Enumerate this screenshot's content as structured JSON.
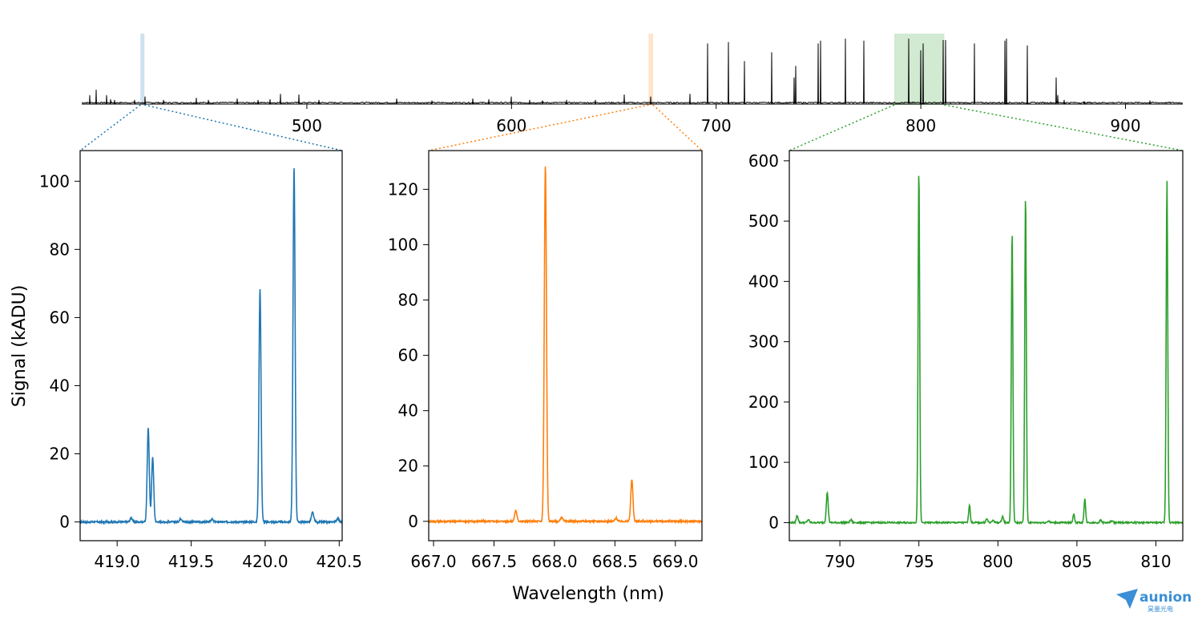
{
  "chart_data": [
    {
      "type": "line",
      "panel": "overview",
      "xlabel": "",
      "ylabel": "",
      "xlim": [
        390,
        928
      ],
      "xticks": [
        500,
        600,
        700,
        800,
        900
      ],
      "highlight_regions": [
        {
          "range": [
            418.8,
            420.5
          ],
          "color": "#1f77b4"
        },
        {
          "range": [
            667.0,
            669.2
          ],
          "color": "#ff7f0e"
        },
        {
          "range": [
            787.0,
            811.5
          ],
          "color": "#2ca02c"
        }
      ],
      "peaks": [
        [
          394,
          0.12
        ],
        [
          397,
          0.2
        ],
        [
          402,
          0.12
        ],
        [
          404,
          0.06
        ],
        [
          406,
          0.05
        ],
        [
          416,
          0.05
        ],
        [
          421,
          0.1
        ],
        [
          430,
          0.05
        ],
        [
          446,
          0.08
        ],
        [
          452,
          0.05
        ],
        [
          466,
          0.07
        ],
        [
          476,
          0.05
        ],
        [
          482,
          0.06
        ],
        [
          487,
          0.14
        ],
        [
          496,
          0.13
        ],
        [
          506,
          0.05
        ],
        [
          544,
          0.07
        ],
        [
          561,
          0.04
        ],
        [
          581,
          0.07
        ],
        [
          589,
          0.06
        ],
        [
          600,
          0.1
        ],
        [
          609,
          0.05
        ],
        [
          615,
          0.04
        ],
        [
          627,
          0.05
        ],
        [
          641,
          0.05
        ],
        [
          655,
          0.13
        ],
        [
          668,
          0.1
        ],
        [
          687,
          0.14
        ],
        [
          696,
          0.88
        ],
        [
          706,
          0.9
        ],
        [
          714,
          0.62
        ],
        [
          727,
          0.75
        ],
        [
          738,
          0.38
        ],
        [
          739,
          0.55
        ],
        [
          750,
          0.88
        ],
        [
          751,
          0.92
        ],
        [
          763,
          0.95
        ],
        [
          772,
          0.92
        ],
        [
          794,
          0.95
        ],
        [
          800,
          0.78
        ],
        [
          801,
          0.88
        ],
        [
          811,
          0.93
        ],
        [
          812,
          0.93
        ],
        [
          826,
          0.88
        ],
        [
          841,
          0.92
        ],
        [
          842,
          0.95
        ],
        [
          852,
          0.85
        ],
        [
          866,
          0.38
        ],
        [
          867,
          0.12
        ],
        [
          870,
          0.05
        ],
        [
          880,
          0.03
        ],
        [
          912,
          0.04
        ]
      ]
    },
    {
      "type": "line",
      "panel": "zoom-1",
      "color": "#1f77b4",
      "xlim": [
        418.75,
        420.52
      ],
      "ylim": [
        -5.5,
        109
      ],
      "xticks": [
        419.0,
        419.5,
        420.0,
        420.5
      ],
      "yticks": [
        0,
        20,
        40,
        60,
        80,
        100
      ],
      "peaks": [
        [
          419.095,
          1.2,
          0.008
        ],
        [
          419.21,
          27.5,
          0.007
        ],
        [
          419.24,
          19.0,
          0.007
        ],
        [
          419.43,
          1.0,
          0.008
        ],
        [
          419.64,
          0.8,
          0.008
        ],
        [
          419.965,
          68.5,
          0.007
        ],
        [
          420.195,
          104.0,
          0.007
        ],
        [
          420.32,
          2.8,
          0.008
        ],
        [
          420.49,
          1.0,
          0.008
        ]
      ]
    },
    {
      "type": "line",
      "panel": "zoom-2",
      "color": "#ff7f0e",
      "xlim": [
        666.96,
        669.22
      ],
      "ylim": [
        -7,
        134
      ],
      "xticks": [
        667.0,
        667.5,
        668.0,
        668.5,
        669.0
      ],
      "yticks": [
        0,
        20,
        40,
        60,
        80,
        100,
        120
      ],
      "peaks": [
        [
          667.68,
          4.0,
          0.009
        ],
        [
          667.925,
          128.5,
          0.009
        ],
        [
          668.06,
          1.5,
          0.009
        ],
        [
          668.51,
          1.2,
          0.009
        ],
        [
          668.64,
          15.0,
          0.009
        ]
      ]
    },
    {
      "type": "line",
      "panel": "zoom-3",
      "color": "#2ca02c",
      "xlim": [
        786.8,
        811.7
      ],
      "ylim": [
        -30,
        617
      ],
      "xticks": [
        790,
        795,
        800,
        805,
        810
      ],
      "yticks": [
        0,
        100,
        200,
        300,
        400,
        500,
        600
      ],
      "peaks": [
        [
          787.3,
          12,
          0.06
        ],
        [
          788.0,
          5,
          0.06
        ],
        [
          789.2,
          50,
          0.06
        ],
        [
          790.7,
          5,
          0.06
        ],
        [
          795.0,
          587,
          0.05
        ],
        [
          798.2,
          30,
          0.05
        ],
        [
          799.3,
          6,
          0.06
        ],
        [
          799.7,
          4,
          0.06
        ],
        [
          800.3,
          10,
          0.06
        ],
        [
          800.9,
          485,
          0.05
        ],
        [
          801.75,
          545,
          0.05
        ],
        [
          803.2,
          3,
          0.06
        ],
        [
          804.8,
          15,
          0.05
        ],
        [
          805.5,
          40,
          0.05
        ],
        [
          806.5,
          4,
          0.06
        ],
        [
          807.2,
          3,
          0.06
        ],
        [
          810.7,
          568,
          0.05
        ]
      ]
    }
  ],
  "axis_titles": {
    "ylabel": "Signal (kADU)",
    "xlabel": "Wavelength (nm)"
  },
  "logo": {
    "text": "aunion",
    "subtitle": "昊量光电",
    "icon": "paper-plane-icon"
  }
}
